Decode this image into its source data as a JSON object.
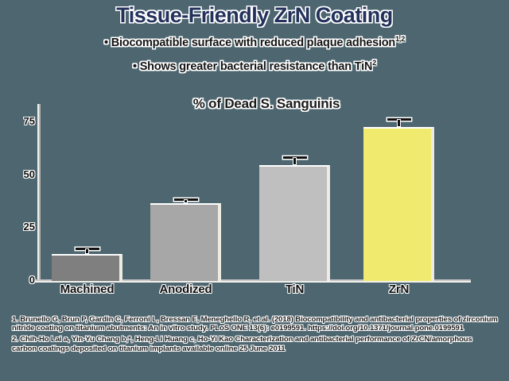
{
  "background_color": "#4d6670",
  "header": {
    "title": "Tissue-Friendly ZrN Coating",
    "title_color": "#23315b",
    "bullet_glyph": "•",
    "bullets": [
      {
        "text": "Biocompatible surface with reduced plaque adhesion",
        "sup": "1,2"
      },
      {
        "text": "Shows greater bacterial resistance than TiN",
        "sup": "2"
      }
    ]
  },
  "chart_data": {
    "type": "bar",
    "title": "% of Dead S. Sanguinis",
    "categories": [
      "Machined",
      "Anodized",
      "TiN",
      "ZrN"
    ],
    "values": [
      12,
      36,
      54,
      72
    ],
    "errors": [
      2,
      1,
      3,
      3
    ],
    "bar_colors": [
      "#7f7f7f",
      "#a7a7a7",
      "#bfbfbf",
      "#f0eb6e"
    ],
    "xlabel": "",
    "ylabel": "",
    "ylim": [
      0,
      80
    ],
    "yticks": [
      0,
      25,
      50,
      75
    ],
    "grid": false,
    "legend": "none"
  },
  "footnotes": [
    "1. Brunello G, Brun P, Gardin C, Ferroni L, Bressan E, Meneghello R, et al. (2018) Biocompatibility and antibacterial properties of zirconium nitride coating on titanium abutments: An in vitro study. PLoS ONE 13(6): e0199591. https://doi.org/10.1371/journal.pone.0199591",
    "2. Chih-Ho Lai a, Yin-Yu Chang b,*, Heng-Li Huang c, Ho-Yi Kao Characterization and antibacterial performance of ZrCN/amorphous carbon coatings deposited on titanium implants available online 25 June 2011"
  ]
}
